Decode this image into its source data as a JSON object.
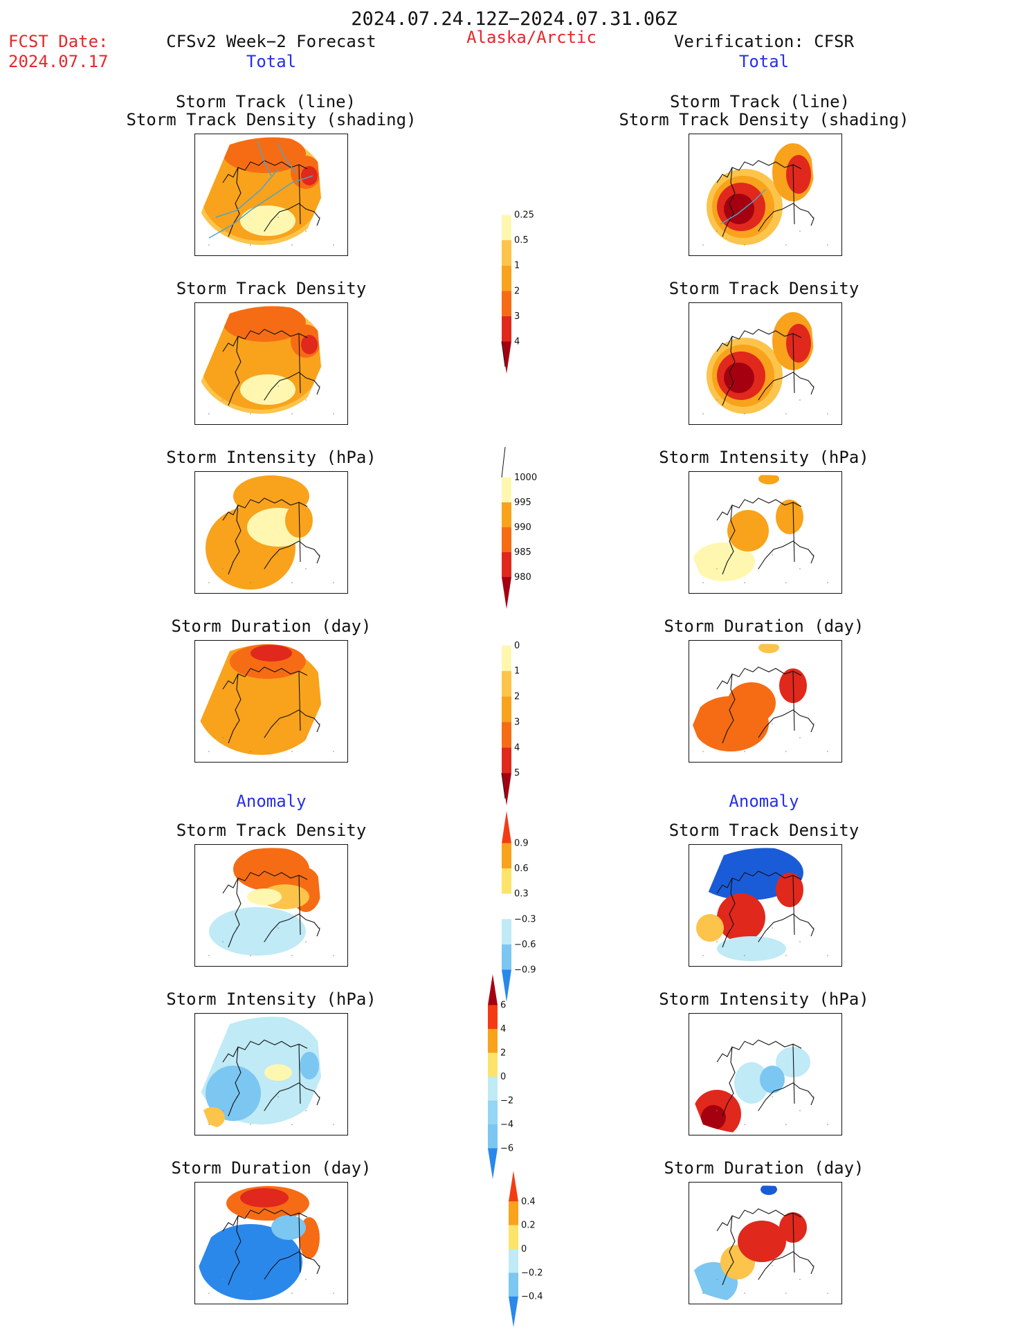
{
  "header": {
    "period": "2024.07.24.12Z−2024.07.31.06Z",
    "region": "Alaska/Arctic",
    "fcst_label": "FCST Date:",
    "fcst_date": "2024.07.17",
    "left_title": "CFSv2 Week−2 Forecast",
    "right_title": "Verification: CFSR",
    "total_label": "Total",
    "anomaly_label": "Anomaly"
  },
  "colors": {
    "text_red": "#e8262a",
    "text_blue": "#2430e8",
    "c_pale_yellow": "#fff7b0",
    "c_light_orange": "#fcc44a",
    "c_orange": "#f9a21c",
    "c_dark_orange": "#f66c14",
    "c_red": "#e0281c",
    "c_dark_red": "#a50010",
    "c_light_blue": "#bfeaf6",
    "c_mid_blue": "#7cc6f2",
    "c_blue": "#2a88ea",
    "c_dark_blue": "#1a5cd8",
    "track_line": "#4fa3c8"
  },
  "chart_data": [
    {
      "type": "heatmap",
      "panel": "forecast-total-track",
      "title_line1": "Storm Track (line)",
      "title_line2": "Storm Track Density (shading)"
    },
    {
      "type": "heatmap",
      "panel": "forecast-total-density",
      "title": "Storm Track Density"
    },
    {
      "type": "heatmap",
      "panel": "forecast-total-intensity",
      "title": "Storm Intensity (hPa)"
    },
    {
      "type": "heatmap",
      "panel": "forecast-total-duration",
      "title": "Storm Duration (day)"
    },
    {
      "type": "heatmap",
      "panel": "forecast-anomaly-density",
      "title": "Storm Track Density"
    },
    {
      "type": "heatmap",
      "panel": "forecast-anomaly-intensity",
      "title": "Storm Intensity (hPa)"
    },
    {
      "type": "heatmap",
      "panel": "forecast-anomaly-duration",
      "title": "Storm Duration (day)"
    },
    {
      "type": "heatmap",
      "panel": "verification-total-track",
      "title_line1": "Storm Track (line)",
      "title_line2": "Storm Track Density (shading)"
    },
    {
      "type": "heatmap",
      "panel": "verification-total-density",
      "title": "Storm Track Density"
    },
    {
      "type": "heatmap",
      "panel": "verification-total-intensity",
      "title": "Storm Intensity (hPa)"
    },
    {
      "type": "heatmap",
      "panel": "verification-total-duration",
      "title": "Storm Duration (day)"
    },
    {
      "type": "heatmap",
      "panel": "verification-anomaly-density",
      "title": "Storm Track Density"
    },
    {
      "type": "heatmap",
      "panel": "verification-anomaly-intensity",
      "title": "Storm Intensity (hPa)"
    },
    {
      "type": "heatmap",
      "panel": "verification-anomaly-duration",
      "title": "Storm Duration (day)"
    }
  ],
  "colorbars": [
    {
      "name": "total-density-bar",
      "ticks": [
        "0.25",
        "0.5",
        "1",
        "2",
        "3",
        "4"
      ],
      "colors": [
        "#ffffff",
        "#fff7b0",
        "#fcc44a",
        "#f9a21c",
        "#f66c14",
        "#e0281c",
        "#a50010"
      ]
    },
    {
      "name": "total-intensity-bar",
      "ticks": [
        "1000",
        "995",
        "990",
        "985",
        "980"
      ],
      "colors": [
        "#ffffff",
        "#fff7b0",
        "#f9a21c",
        "#f66c14",
        "#e0281c",
        "#a50010"
      ]
    },
    {
      "name": "total-duration-bar",
      "ticks": [
        "0",
        "1",
        "2",
        "3",
        "4",
        "5"
      ],
      "colors": [
        "#ffffff",
        "#fff7b0",
        "#fcc44a",
        "#f9a21c",
        "#f66c14",
        "#e0281c",
        "#a50010"
      ]
    },
    {
      "name": "anomaly-density-bar",
      "ticks": [
        "0.9",
        "0.6",
        "0.3",
        "−0.3",
        "−0.6",
        "−0.9"
      ],
      "colors": [
        "#f43c14",
        "#f9a21c",
        "#fce46a",
        "#ffffff",
        "#bfeaf6",
        "#7cc6f2",
        "#2a88ea"
      ]
    },
    {
      "name": "anomaly-intensity-bar",
      "ticks": [
        "6",
        "4",
        "2",
        "0",
        "−2",
        "−4",
        "−6"
      ],
      "colors": [
        "#a50010",
        "#f43c14",
        "#f9a21c",
        "#fce46a",
        "#bfeaf6",
        "#94d6f4",
        "#7cc6f2",
        "#2a88ea"
      ]
    },
    {
      "name": "anomaly-duration-bar",
      "ticks": [
        "0.4",
        "0.2",
        "0",
        "−0.2",
        "−0.4"
      ],
      "colors": [
        "#f43c14",
        "#f9a21c",
        "#fce46a",
        "#bfeaf6",
        "#7cc6f2",
        "#2a88ea"
      ]
    }
  ]
}
